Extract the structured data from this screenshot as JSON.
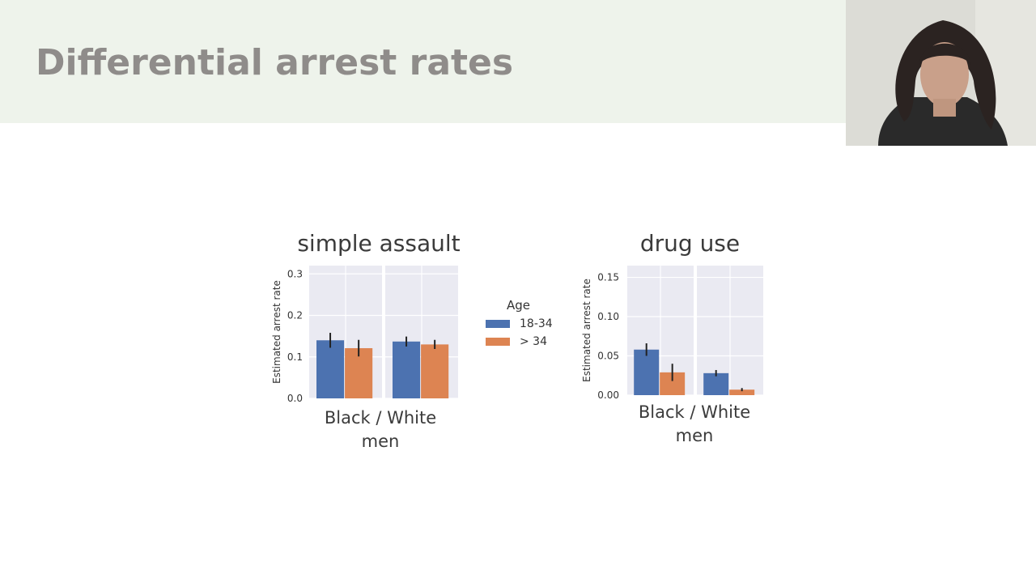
{
  "slide": {
    "title": "Differential arrest rates"
  },
  "colors": {
    "series_young": "#4c72b0",
    "series_old": "#dd8452",
    "panel_bg": "#eaeaf2",
    "header_bg": "#eef3eb"
  },
  "legend": {
    "title": "Age",
    "items": [
      "18-34",
      "> 34"
    ]
  },
  "chart_data": [
    {
      "type": "bar",
      "title": "simple assault",
      "ylabel": "Estimated arrest rate",
      "xlabel_lines": [
        "Black / White",
        "men"
      ],
      "ylim": [
        0,
        0.32
      ],
      "yticks": [
        "0.0",
        "0.1",
        "0.2",
        "0.3"
      ],
      "ytick_values": [
        0.0,
        0.1,
        0.2,
        0.3
      ],
      "facets": [
        "Black",
        "White"
      ],
      "series": [
        {
          "name": "18-34",
          "values": [
            0.14,
            0.137
          ],
          "err": [
            0.018,
            0.012
          ]
        },
        {
          "name": "> 34",
          "values": [
            0.121,
            0.13
          ],
          "err": [
            0.02,
            0.011
          ]
        }
      ],
      "grid": true
    },
    {
      "type": "bar",
      "title": "drug use",
      "ylabel": "Estimated arrest rate",
      "xlabel_lines": [
        "Black / White",
        "men"
      ],
      "ylim": [
        0,
        0.165
      ],
      "yticks": [
        "0.00",
        "0.05",
        "0.10",
        "0.15"
      ],
      "ytick_values": [
        0.0,
        0.05,
        0.1,
        0.15
      ],
      "facets": [
        "Black",
        "White"
      ],
      "series": [
        {
          "name": "18-34",
          "values": [
            0.058,
            0.028
          ],
          "err": [
            0.008,
            0.004
          ]
        },
        {
          "name": "> 34",
          "values": [
            0.029,
            0.007
          ],
          "err": [
            0.011,
            0.002
          ]
        }
      ],
      "grid": true
    }
  ]
}
